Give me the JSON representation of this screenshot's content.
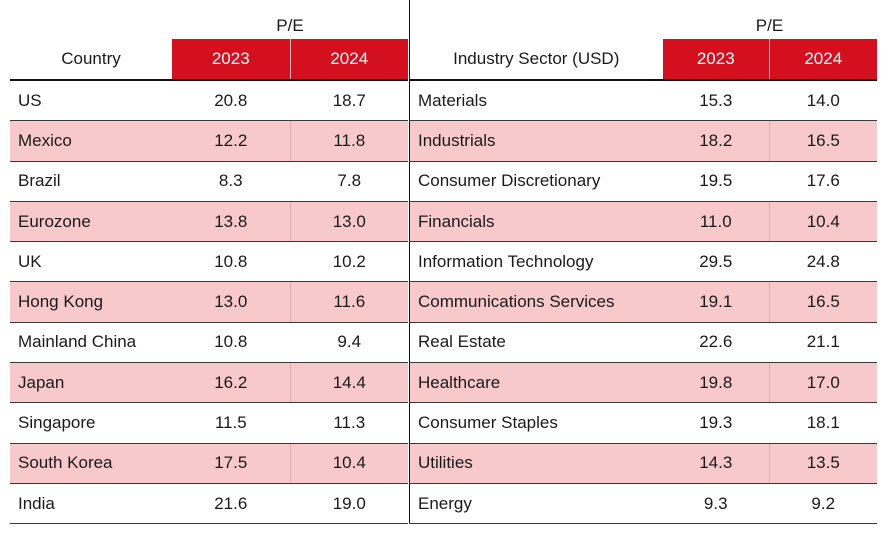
{
  "left_table": {
    "group_header": "P/E",
    "label_header": "Country",
    "year_headers": [
      "2023",
      "2024"
    ],
    "rows": [
      {
        "label": "US",
        "v2023": "20.8",
        "v2024": "18.7"
      },
      {
        "label": "Mexico",
        "v2023": "12.2",
        "v2024": "11.8"
      },
      {
        "label": "Brazil",
        "v2023": "8.3",
        "v2024": "7.8"
      },
      {
        "label": "Eurozone",
        "v2023": "13.8",
        "v2024": "13.0"
      },
      {
        "label": "UK",
        "v2023": "10.8",
        "v2024": "10.2"
      },
      {
        "label": "Hong Kong",
        "v2023": "13.0",
        "v2024": "11.6"
      },
      {
        "label": "Mainland China",
        "v2023": "10.8",
        "v2024": "9.4"
      },
      {
        "label": "Japan",
        "v2023": "16.2",
        "v2024": "14.4"
      },
      {
        "label": "Singapore",
        "v2023": "11.5",
        "v2024": "11.3"
      },
      {
        "label": "South Korea",
        "v2023": "17.5",
        "v2024": "10.4"
      },
      {
        "label": "India",
        "v2023": "21.6",
        "v2024": "19.0"
      }
    ]
  },
  "right_table": {
    "group_header": "P/E",
    "label_header": "Industry Sector (USD)",
    "year_headers": [
      "2023",
      "2024"
    ],
    "rows": [
      {
        "label": "Materials",
        "v2023": "15.3",
        "v2024": "14.0"
      },
      {
        "label": "Industrials",
        "v2023": "18.2",
        "v2024": "16.5"
      },
      {
        "label": "Consumer Discretionary",
        "v2023": "19.5",
        "v2024": "17.6"
      },
      {
        "label": "Financials",
        "v2023": "11.0",
        "v2024": "10.4"
      },
      {
        "label": "Information Technology",
        "v2023": "29.5",
        "v2024": "24.8"
      },
      {
        "label": "Communications Services",
        "v2023": "19.1",
        "v2024": "16.5"
      },
      {
        "label": "Real Estate",
        "v2023": "22.6",
        "v2024": "21.1"
      },
      {
        "label": "Healthcare",
        "v2023": "19.8",
        "v2024": "17.0"
      },
      {
        "label": "Consumer Staples",
        "v2023": "19.3",
        "v2024": "18.1"
      },
      {
        "label": "Utilities",
        "v2023": "14.3",
        "v2024": "13.5"
      },
      {
        "label": "Energy",
        "v2023": "9.3",
        "v2024": "9.2"
      }
    ]
  },
  "colors": {
    "header_red": "#d40f1e",
    "stripe_pink": "#f8c9cb"
  }
}
